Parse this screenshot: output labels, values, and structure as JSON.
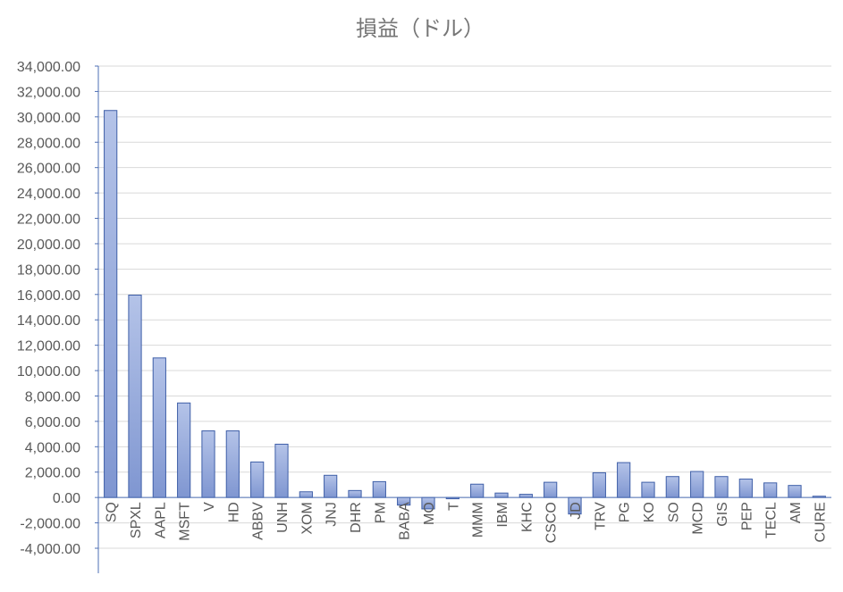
{
  "chart_data": {
    "type": "bar",
    "title": "損益（ドル）",
    "xlabel": "",
    "ylabel": "",
    "ylim": [
      -4000,
      34000
    ],
    "ytick_step": 2000,
    "ytick_labels": [
      "-4,000.00",
      "-2,000.00",
      "0.00",
      "2,000.00",
      "4,000.00",
      "6,000.00",
      "8,000.00",
      "10,000.00",
      "12,000.00",
      "14,000.00",
      "16,000.00",
      "18,000.00",
      "20,000.00",
      "22,000.00",
      "24,000.00",
      "26,000.00",
      "28,000.00",
      "30,000.00",
      "32,000.00",
      "34,000.00"
    ],
    "grid": true,
    "legend": "none",
    "categories": [
      "SQ",
      "SPXL",
      "AAPL",
      "MSFT",
      "V",
      "HD",
      "ABBV",
      "UNH",
      "XOM",
      "JNJ",
      "DHR",
      "PM",
      "BABA",
      "MO",
      "T",
      "MMM",
      "IBM",
      "KHC",
      "CSCO",
      "JD",
      "TRV",
      "PG",
      "KO",
      "SO",
      "MCD",
      "GIS",
      "PEP",
      "TECL",
      "AM",
      "CURE"
    ],
    "values": [
      30500,
      15950,
      11000,
      7450,
      5250,
      5250,
      2800,
      4200,
      450,
      1750,
      550,
      1250,
      -600,
      -900,
      -100,
      1050,
      350,
      250,
      1200,
      -1300,
      1950,
      2750,
      1200,
      1650,
      2050,
      1650,
      1450,
      1150,
      950,
      100
    ],
    "colors": {
      "bar_fill_top": "#b4c3e8",
      "bar_fill_bottom": "#7f96d1",
      "bar_stroke": "#3f5fa8",
      "title": "#767676",
      "tick_text": "#595959",
      "grid": "#d9d9d9"
    }
  }
}
